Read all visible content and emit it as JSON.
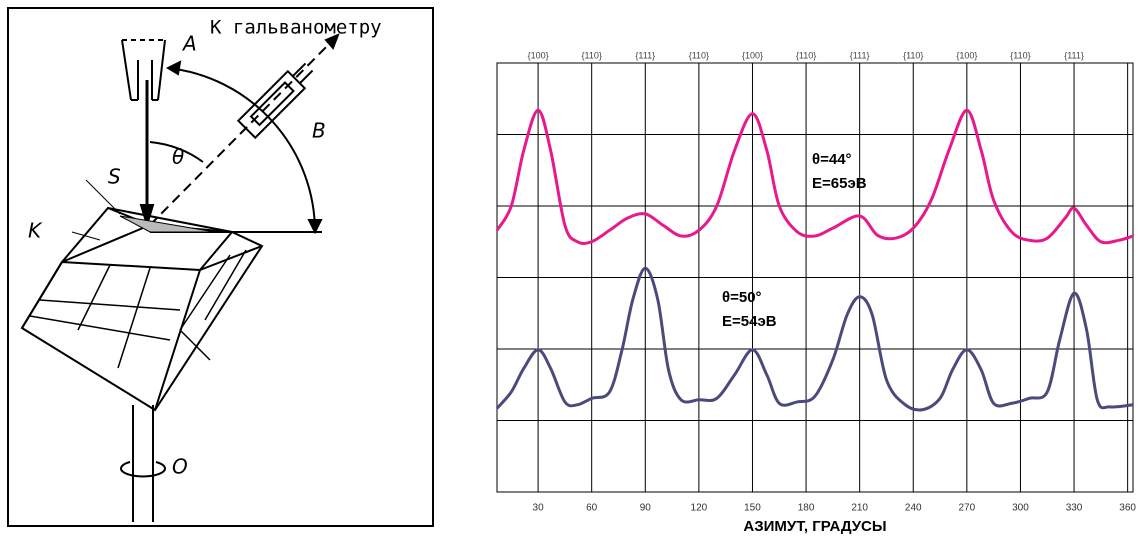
{
  "diagram": {
    "labels": {
      "galvanometer": "К гальванометру",
      "a": "A",
      "b": "B",
      "theta": "θ",
      "s": "S",
      "k": "K",
      "o": "O"
    }
  },
  "chart_data": {
    "type": "line",
    "x_label": "АЗИМУТ, ГРАДУСЫ",
    "xlim": [
      7,
      363
    ],
    "xticks": [
      30,
      60,
      90,
      120,
      150,
      180,
      210,
      240,
      270,
      300,
      330,
      360
    ],
    "top_labels": [
      "{100}",
      "{110}",
      "{111}",
      "{110}",
      "{100}",
      "{110}",
      "{111}",
      "{110}",
      "{100}",
      "{110}",
      "{111}"
    ],
    "ylim": [
      0,
      6
    ],
    "ygrid": [
      1,
      2,
      3,
      4,
      5
    ],
    "annotations": [
      "θ=44°",
      "E=65эВ",
      "θ=50°",
      "E=54эВ"
    ],
    "series": [
      {
        "color": "#e8198c",
        "x": [
          7,
          15,
          22,
          30,
          37,
          45,
          52,
          60,
          70,
          80,
          90,
          100,
          110,
          120,
          130,
          140,
          150,
          158,
          165,
          175,
          185,
          195,
          210,
          220,
          230,
          240,
          250,
          260,
          270,
          278,
          285,
          295,
          305,
          315,
          325,
          330,
          337,
          345,
          355,
          363
        ],
        "values": [
          3.66,
          4.0,
          4.78,
          5.34,
          4.78,
          3.73,
          3.5,
          3.5,
          3.66,
          3.83,
          3.89,
          3.73,
          3.58,
          3.66,
          4.0,
          4.78,
          5.29,
          4.78,
          4.0,
          3.64,
          3.58,
          3.69,
          3.86,
          3.59,
          3.55,
          3.69,
          4.08,
          4.78,
          5.34,
          4.78,
          4.08,
          3.64,
          3.52,
          3.55,
          3.83,
          3.97,
          3.73,
          3.5,
          3.52,
          3.58
        ]
      },
      {
        "color": "#4b4a7c",
        "x": [
          7,
          15,
          22,
          30,
          37,
          45,
          52,
          60,
          70,
          77,
          83,
          90,
          97,
          103,
          110,
          120,
          130,
          140,
          150,
          158,
          165,
          175,
          185,
          195,
          203,
          210,
          217,
          225,
          235,
          245,
          255,
          262,
          270,
          278,
          285,
          295,
          305,
          315,
          322,
          330,
          337,
          343,
          350,
          363
        ],
        "values": [
          1.17,
          1.4,
          1.73,
          1.99,
          1.73,
          1.26,
          1.22,
          1.31,
          1.4,
          1.99,
          2.69,
          3.13,
          2.69,
          1.71,
          1.29,
          1.29,
          1.31,
          1.64,
          1.99,
          1.64,
          1.24,
          1.26,
          1.34,
          1.85,
          2.48,
          2.73,
          2.48,
          1.57,
          1.23,
          1.15,
          1.31,
          1.71,
          1.99,
          1.71,
          1.24,
          1.24,
          1.31,
          1.4,
          2.13,
          2.78,
          2.27,
          1.29,
          1.19,
          1.22
        ]
      }
    ]
  }
}
